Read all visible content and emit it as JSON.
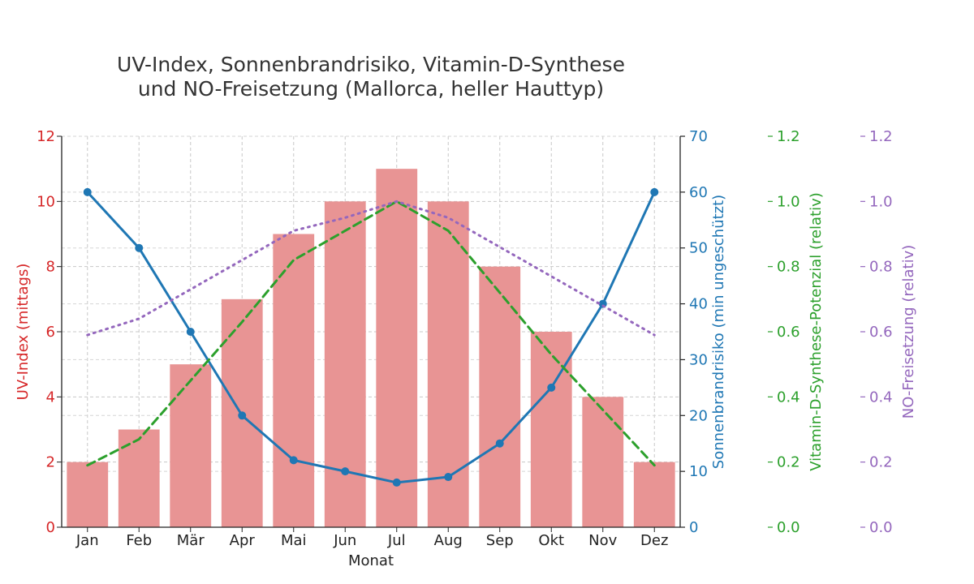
{
  "chart_data": {
    "type": "bar",
    "title_lines": [
      "UV-Index, Sonnenbrandrisiko, Vitamin-D-Synthese",
      "und NO-Freisetzung (Mallorca, heller Hauttyp)"
    ],
    "xlabel": "Monat",
    "categories": [
      "Jan",
      "Feb",
      "Mär",
      "Apr",
      "Mai",
      "Jun",
      "Jul",
      "Aug",
      "Sep",
      "Okt",
      "Nov",
      "Dez"
    ],
    "grid": true,
    "axes": {
      "uv": {
        "label": "UV-Index (mittags)",
        "ylim": [
          0,
          12
        ],
        "ticks": [
          "0",
          "2",
          "4",
          "6",
          "8",
          "10",
          "12"
        ],
        "color": "#d62728"
      },
      "burn": {
        "label": "Sonnenbrandrisiko (min ungeschützt)",
        "ylim": [
          0,
          70
        ],
        "ticks": [
          "0",
          "10",
          "20",
          "30",
          "40",
          "50",
          "60",
          "70"
        ],
        "color": "#1f77b4"
      },
      "vitd": {
        "label": "Vitamin-D-Synthese-Potenzial (relativ)",
        "ylim": [
          0,
          1.2
        ],
        "ticks": [
          "0.0",
          "0.2",
          "0.4",
          "0.6",
          "0.8",
          "1.0",
          "1.2"
        ],
        "color": "#2ca02c"
      },
      "no": {
        "label": "NO-Freisetzung (relativ)",
        "ylim": [
          0,
          1.2
        ],
        "ticks": [
          "0.0",
          "0.2",
          "0.4",
          "0.6",
          "0.8",
          "1.0",
          "1.2"
        ],
        "color": "#9467bd"
      }
    },
    "series": [
      {
        "axis": "uv",
        "type": "bar",
        "color": "#e89494",
        "values": [
          2,
          3,
          5,
          7,
          9,
          10,
          11,
          10,
          8,
          6,
          4,
          2
        ]
      },
      {
        "axis": "burn",
        "type": "line",
        "style": "solid-markers",
        "color": "#1f77b4",
        "values": [
          60,
          50,
          35,
          20,
          12,
          10,
          8,
          9,
          15,
          25,
          40,
          60
        ]
      },
      {
        "axis": "vitd",
        "type": "line",
        "style": "dashed",
        "color": "#2ca02c",
        "values": [
          0.19,
          0.27,
          0.45,
          0.63,
          0.82,
          0.91,
          1.0,
          0.91,
          0.72,
          0.53,
          0.36,
          0.19
        ]
      },
      {
        "axis": "no",
        "type": "line",
        "style": "dotted",
        "color": "#9467bd",
        "values": [
          0.59,
          0.64,
          0.73,
          0.82,
          0.91,
          0.95,
          1.0,
          0.95,
          0.86,
          0.77,
          0.68,
          0.59
        ]
      }
    ]
  }
}
